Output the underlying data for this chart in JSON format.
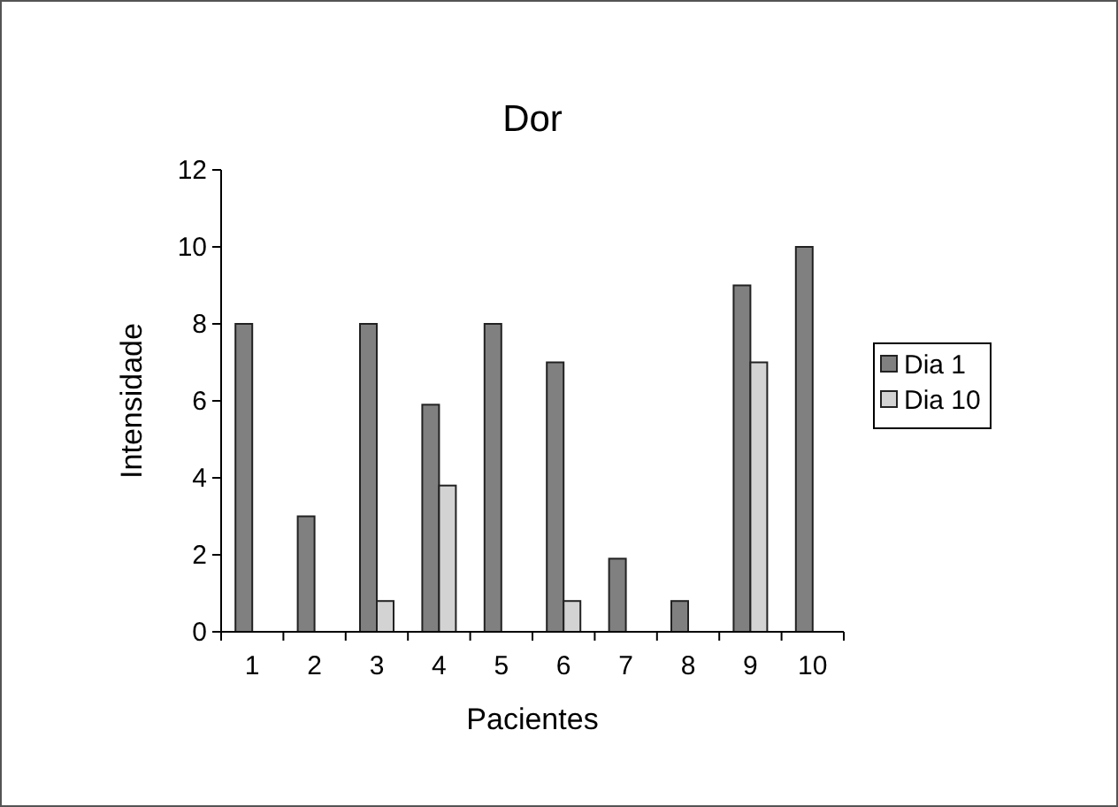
{
  "chart_data": {
    "type": "bar",
    "title": "Dor",
    "xlabel": "Pacientes",
    "ylabel": "Intensidade",
    "categories": [
      "1",
      "2",
      "3",
      "4",
      "5",
      "6",
      "7",
      "8",
      "9",
      "10"
    ],
    "series": [
      {
        "name": "Dia 1",
        "color": "#808080",
        "values": [
          8,
          3,
          8,
          5.9,
          8,
          7,
          1.9,
          0.8,
          9,
          10
        ]
      },
      {
        "name": "Dia 10",
        "color": "#d3d3d3",
        "values": [
          null,
          null,
          0.8,
          3.8,
          null,
          0.8,
          null,
          null,
          7,
          null
        ]
      }
    ],
    "ylim": [
      0,
      12
    ],
    "yticks": [
      0,
      2,
      4,
      6,
      8,
      10,
      12
    ],
    "grid": false,
    "legend": "right"
  }
}
